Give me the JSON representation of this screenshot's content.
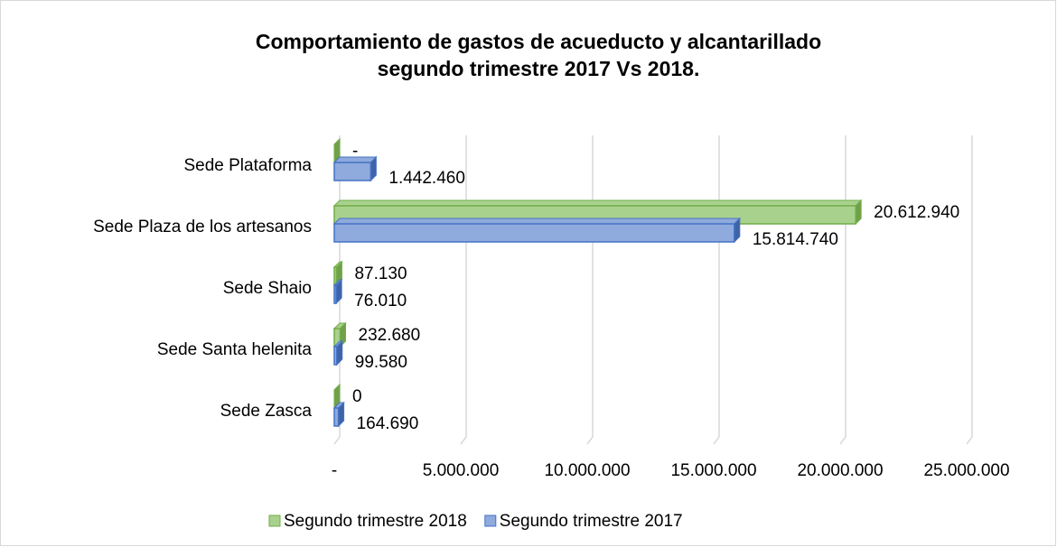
{
  "chart_data": {
    "type": "bar",
    "orientation": "horizontal",
    "title": "Comportamiento de gastos de acueducto y alcantarillado segundo trimestre 2017 Vs 2018.",
    "categories": [
      "Sede Plataforma",
      "Sede Plaza de los artesanos",
      "Sede Shaio",
      "Sede Santa helenita",
      "Sede Zasca"
    ],
    "series": [
      {
        "name": "Segundo trimestre 2018",
        "color": "#a9d18e",
        "values": [
          0,
          20612940,
          87130,
          232680,
          0
        ],
        "value_labels": [
          "-",
          "20.612.940",
          "87.130",
          "232.680",
          "0"
        ]
      },
      {
        "name": "Segundo trimestre 2017",
        "color": "#8faadc",
        "values": [
          1442460,
          15814740,
          76010,
          99580,
          164690
        ],
        "value_labels": [
          "1.442.460",
          "15.814.740",
          "76.010",
          "99.580",
          "164.690"
        ]
      }
    ],
    "xlim": [
      0,
      25000000
    ],
    "xticks": [
      {
        "value": 0,
        "label": "-"
      },
      {
        "value": 5000000,
        "label": "5.000.000"
      },
      {
        "value": 10000000,
        "label": "10.000.000"
      },
      {
        "value": 15000000,
        "label": "15.000.000"
      },
      {
        "value": 20000000,
        "label": "20.000.000"
      },
      {
        "value": 25000000,
        "label": "25.000.000"
      }
    ],
    "grid": true,
    "legend": "bottom"
  }
}
